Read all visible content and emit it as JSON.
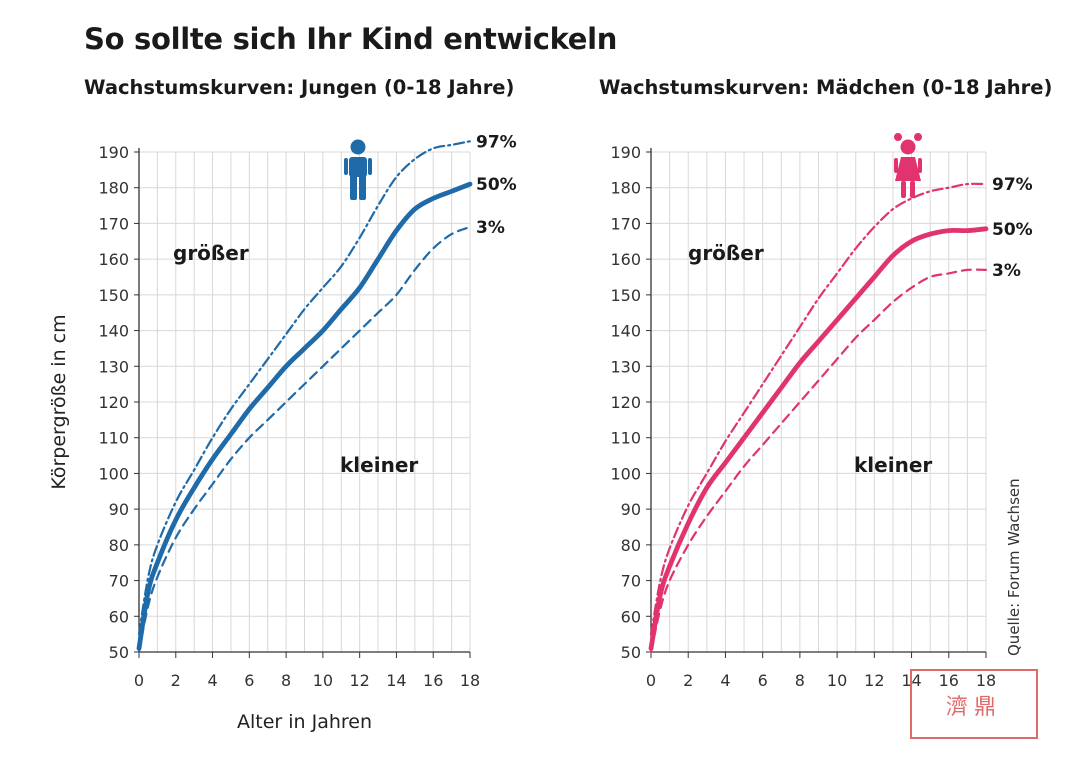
{
  "title": "So sollte sich Ihr Kind entwickeln",
  "source": "Quelle: Forum Wachsen",
  "watermark": "濟鼎",
  "colors": {
    "boys": "#1f6aa8",
    "girls": "#e0336f",
    "grid": "#d8d8d8",
    "axis": "#333333"
  },
  "chart_data": [
    {
      "type": "line",
      "title": "Wachstumskurven: Jungen (0-18 Jahre)",
      "xlabel": "Alter in Jahren",
      "ylabel": "Körpergröße in cm",
      "xlim": [
        0,
        18
      ],
      "ylim": [
        50,
        190
      ],
      "x_ticks": [
        0,
        2,
        4,
        6,
        8,
        10,
        12,
        14,
        16,
        18
      ],
      "y_ticks": [
        50,
        60,
        70,
        80,
        90,
        100,
        110,
        120,
        130,
        140,
        150,
        160,
        170,
        180,
        190
      ],
      "grid": true,
      "icon": "boy-icon",
      "region_labels": {
        "above": "größer",
        "below": "kleiner"
      },
      "series": [
        {
          "name": "97%",
          "style": "dashdot",
          "x": [
            0,
            0.5,
            1,
            2,
            3,
            4,
            5,
            6,
            7,
            8,
            9,
            10,
            11,
            12,
            13,
            14,
            15,
            16,
            17,
            18
          ],
          "y": [
            55,
            71,
            80,
            92,
            101,
            110,
            118,
            125,
            132,
            139,
            146,
            152,
            158,
            166,
            175,
            183,
            188,
            191,
            192,
            193
          ]
        },
        {
          "name": "50%",
          "style": "solid",
          "x": [
            0,
            0.5,
            1,
            2,
            3,
            4,
            5,
            6,
            7,
            8,
            9,
            10,
            11,
            12,
            13,
            14,
            15,
            16,
            17,
            18
          ],
          "y": [
            51,
            67,
            75,
            87,
            96,
            104,
            111,
            118,
            124,
            130,
            135,
            140,
            146,
            152,
            160,
            168,
            174,
            177,
            179,
            181
          ]
        },
        {
          "name": "3%",
          "style": "dashed",
          "x": [
            0,
            0.5,
            1,
            2,
            3,
            4,
            5,
            6,
            7,
            8,
            9,
            10,
            11,
            12,
            13,
            14,
            15,
            16,
            17,
            18
          ],
          "y": [
            50,
            63,
            71,
            82,
            90,
            97,
            104,
            110,
            115,
            120,
            125,
            130,
            135,
            140,
            145,
            150,
            157,
            163,
            167,
            169
          ]
        }
      ]
    },
    {
      "type": "line",
      "title": "Wachstumskurven: Mädchen (0-18 Jahre)",
      "xlabel": "",
      "ylabel": "",
      "xlim": [
        0,
        18
      ],
      "ylim": [
        50,
        190
      ],
      "x_ticks": [
        0,
        2,
        4,
        6,
        8,
        10,
        12,
        14,
        16,
        18
      ],
      "y_ticks": [
        50,
        60,
        70,
        80,
        90,
        100,
        110,
        120,
        130,
        140,
        150,
        160,
        170,
        180,
        190
      ],
      "grid": true,
      "icon": "girl-icon",
      "region_labels": {
        "above": "größer",
        "below": "kleiner"
      },
      "series": [
        {
          "name": "97%",
          "style": "dashdot",
          "x": [
            0,
            0.5,
            1,
            2,
            3,
            4,
            5,
            6,
            7,
            8,
            9,
            10,
            11,
            12,
            13,
            14,
            15,
            16,
            17,
            18
          ],
          "y": [
            55,
            70,
            79,
            91,
            100,
            109,
            117,
            125,
            133,
            141,
            149,
            156,
            163,
            169,
            174,
            177,
            179,
            180,
            181,
            181
          ]
        },
        {
          "name": "50%",
          "style": "solid",
          "x": [
            0,
            0.5,
            1,
            2,
            3,
            4,
            5,
            6,
            7,
            8,
            9,
            10,
            11,
            12,
            13,
            14,
            15,
            16,
            17,
            18
          ],
          "y": [
            51,
            66,
            74,
            86,
            96,
            103,
            110,
            117,
            124,
            131,
            137,
            143,
            149,
            155,
            161,
            165,
            167,
            168,
            168,
            168.5
          ]
        },
        {
          "name": "3%",
          "style": "dashed",
          "x": [
            0,
            0.5,
            1,
            2,
            3,
            4,
            5,
            6,
            7,
            8,
            9,
            10,
            11,
            12,
            13,
            14,
            15,
            16,
            17,
            18
          ],
          "y": [
            50,
            62,
            70,
            80,
            88,
            95,
            102,
            108,
            114,
            120,
            126,
            132,
            138,
            143,
            148,
            152,
            155,
            156,
            157,
            157
          ]
        }
      ]
    }
  ]
}
